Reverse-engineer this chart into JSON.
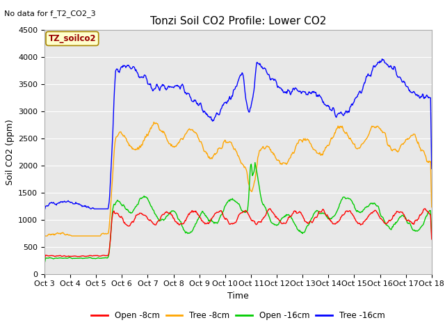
{
  "title": "Tonzi Soil CO2 Profile: Lower CO2",
  "no_data_text": "No data for f_T2_CO2_3",
  "ylabel": "Soil CO2 (ppm)",
  "xlabel": "Time",
  "legend_label_text": "TZ_soilco2",
  "ylim": [
    0,
    4500
  ],
  "x_tick_labels": [
    "Oct 3",
    "Oct 4",
    "Oct 5",
    "Oct 6",
    "Oct 7",
    "Oct 8",
    "Oct 9",
    "Oct 10",
    "Oct 11",
    "Oct 12",
    "Oct 13",
    "Oct 14",
    "Oct 15",
    "Oct 16",
    "Oct 17",
    "Oct 18"
  ],
  "series": {
    "open_8cm": {
      "color": "#ff0000",
      "label": "Open -8cm",
      "linewidth": 1.0
    },
    "tree_8cm": {
      "color": "#ffa500",
      "label": "Tree -8cm",
      "linewidth": 1.0
    },
    "open_16cm": {
      "color": "#00cc00",
      "label": "Open -16cm",
      "linewidth": 1.0
    },
    "tree_16cm": {
      "color": "#0000ff",
      "label": "Tree -16cm",
      "linewidth": 1.0
    }
  },
  "plot_bg_color": "#e8e8e8",
  "grid_color": "#ffffff",
  "title_fontsize": 11,
  "axis_label_fontsize": 9,
  "tick_fontsize": 8
}
